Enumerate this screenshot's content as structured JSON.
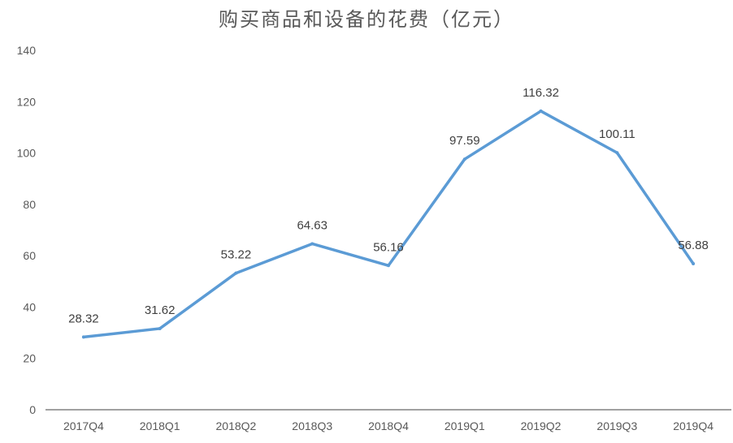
{
  "chart_data": {
    "type": "line",
    "title": "购买商品和设备的花费（亿元）",
    "categories": [
      "2017Q4",
      "2018Q1",
      "2018Q2",
      "2018Q3",
      "2018Q4",
      "2019Q1",
      "2019Q2",
      "2019Q3",
      "2019Q4"
    ],
    "series": [
      {
        "values": [
          28.32,
          31.62,
          53.22,
          64.63,
          56.16,
          97.59,
          116.32,
          100.11,
          56.88
        ],
        "labels": [
          "28.32",
          "31.62",
          "53.22",
          "64.63",
          "56.16",
          "97.59",
          "116.32",
          "100.11",
          "56.88"
        ]
      }
    ],
    "ylim": [
      0,
      140
    ],
    "yticks": [
      "0",
      "20",
      "40",
      "60",
      "80",
      "100",
      "120",
      "140"
    ],
    "grid": false,
    "legend": "none",
    "colors": {
      "line": "#5B9BD5",
      "axis": "#404040",
      "text": "#595959"
    }
  }
}
